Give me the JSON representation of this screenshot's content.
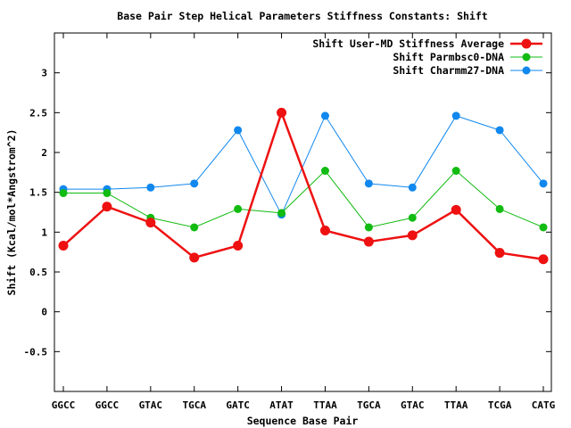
{
  "chart_data": {
    "type": "line",
    "title": "Base Pair Step Helical Parameters Stiffness Constants: Shift",
    "xlabel": "Sequence Base Pair",
    "ylabel": "Shift (Kcal/mol*Angstrom^2)",
    "ylim": [
      -1,
      3.5
    ],
    "yticks": [
      -0.5,
      0,
      0.5,
      1,
      1.5,
      2,
      2.5,
      3
    ],
    "ytick_labels": [
      "-0.5",
      "0",
      "0.5",
      "1",
      "1.5",
      "2",
      "2.5",
      "3"
    ],
    "categories": [
      "GGCC",
      "GGCC",
      "GTAC",
      "TGCA",
      "GATC",
      "ATAT",
      "TTAA",
      "TGCA",
      "GTAC",
      "TTAA",
      "TCGA",
      "CATG"
    ],
    "legend_position": "top-right",
    "grid": false,
    "series": [
      {
        "name": "Shift User-MD Stiffness Average",
        "color": "#ee1111",
        "values": [
          0.83,
          1.32,
          1.12,
          0.68,
          0.83,
          2.5,
          1.02,
          0.88,
          0.96,
          1.28,
          0.74,
          0.66
        ]
      },
      {
        "name": "Shift Parmbsc0-DNA",
        "color": "#11bb11",
        "values": [
          1.49,
          1.49,
          1.18,
          1.06,
          1.29,
          1.24,
          1.77,
          1.06,
          1.18,
          1.77,
          1.29,
          1.06
        ]
      },
      {
        "name": "Shift Charmm27-DNA",
        "color": "#1188ee",
        "values": [
          1.54,
          1.54,
          1.56,
          1.61,
          2.28,
          1.22,
          2.46,
          1.61,
          1.56,
          2.46,
          2.28,
          1.61
        ]
      }
    ]
  }
}
